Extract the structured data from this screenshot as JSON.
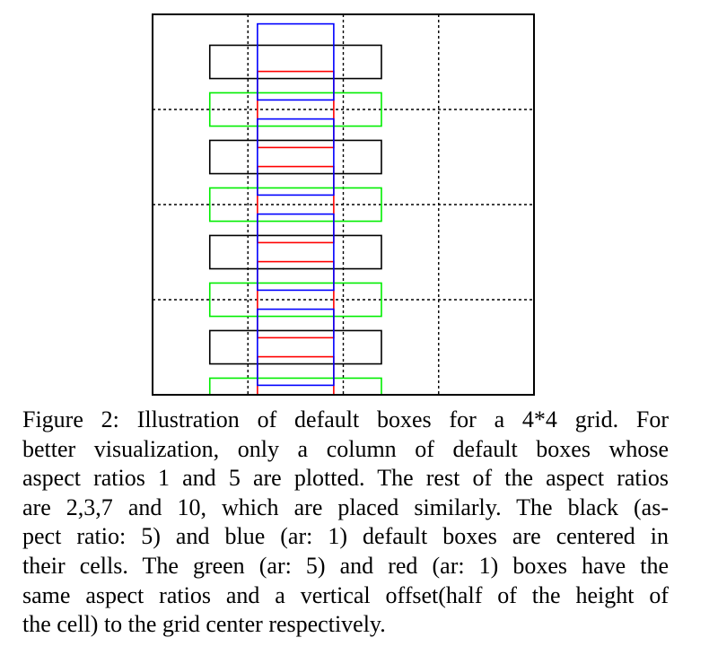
{
  "figure": {
    "grid": {
      "rows": 4,
      "cols": 4,
      "highlighted_column": 2
    },
    "colors": {
      "frame": "#000000",
      "grid_lines": "#000000",
      "centered_ar5": "#000000",
      "centered_ar1": "#0000ff",
      "offset_ar5": "#00ee00",
      "offset_ar1": "#ff0000"
    },
    "aspect_ratios_plotted": [
      1,
      5
    ],
    "aspect_ratios_omitted": [
      2,
      3,
      7,
      10
    ],
    "vertical_offset_fraction_of_cell": 0.5
  },
  "caption": {
    "lines": [
      "Figure 2: Illustration of default boxes for a 4*4 grid. For",
      "better visualization, only a column of default boxes whose",
      "aspect ratios 1 and 5 are plotted. The rest of the aspect ratios",
      "are 2,3,7 and 10, which are placed similarly. The black (as-",
      "pect ratio: 5) and blue (ar: 1) default boxes are centered in",
      "their cells. The green (ar: 5) and red (ar: 1) boxes have the",
      "same aspect ratios and a vertical offset(half of the height of",
      "the cell) to the grid center respectively."
    ]
  }
}
